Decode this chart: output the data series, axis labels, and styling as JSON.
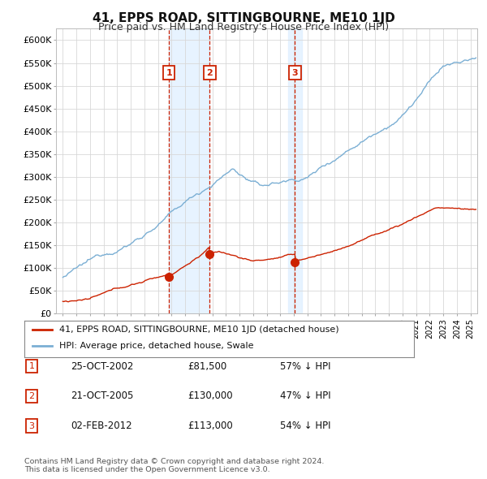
{
  "title": "41, EPPS ROAD, SITTINGBOURNE, ME10 1JD",
  "subtitle": "Price paid vs. HM Land Registry's House Price Index (HPI)",
  "hpi_color": "#7bafd4",
  "price_color": "#cc2200",
  "annotation_color": "#cc2200",
  "background_color": "#ffffff",
  "grid_color": "#d8d8d8",
  "shade_color": "#ddeeff",
  "ylim": [
    0,
    625000
  ],
  "yticks": [
    0,
    50000,
    100000,
    150000,
    200000,
    250000,
    300000,
    350000,
    400000,
    450000,
    500000,
    550000,
    600000
  ],
  "xlim_start": 1994.5,
  "xlim_end": 2025.5,
  "transactions": [
    {
      "label": "1",
      "date": "25-OCT-2002",
      "price": 81500,
      "x": 2002.81,
      "hpi_pct": "57% ↓ HPI"
    },
    {
      "label": "2",
      "date": "21-OCT-2005",
      "price": 130000,
      "x": 2005.81,
      "hpi_pct": "47% ↓ HPI"
    },
    {
      "label": "3",
      "date": "02-FEB-2012",
      "price": 113000,
      "x": 2012.09,
      "hpi_pct": "54% ↓ HPI"
    }
  ],
  "legend_label_red": "41, EPPS ROAD, SITTINGBOURNE, ME10 1JD (detached house)",
  "legend_label_blue": "HPI: Average price, detached house, Swale",
  "footnote": "Contains HM Land Registry data © Crown copyright and database right 2024.\nThis data is licensed under the Open Government Licence v3.0."
}
